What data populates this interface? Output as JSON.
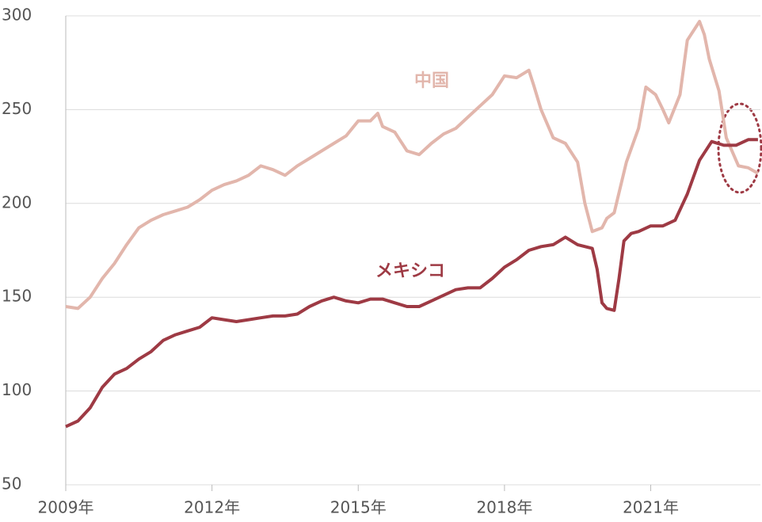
{
  "chart_data": {
    "type": "line",
    "xlim": [
      2009,
      2023.25
    ],
    "xticks": [
      {
        "value": 2009,
        "label": "2009年"
      },
      {
        "value": 2012,
        "label": "2012年"
      },
      {
        "value": 2015,
        "label": "2015年"
      },
      {
        "value": 2018,
        "label": "2018年"
      },
      {
        "value": 2021,
        "label": "2021年"
      }
    ],
    "ylim": [
      50,
      300
    ],
    "yticks": [
      50,
      100,
      150,
      200,
      250,
      300
    ],
    "grid": true,
    "series": [
      {
        "name": "中国",
        "color": "#e2b6ac",
        "x": [
          2009.0,
          2009.25,
          2009.5,
          2009.75,
          2010.0,
          2010.25,
          2010.5,
          2010.75,
          2011.0,
          2011.25,
          2011.5,
          2011.75,
          2012.0,
          2012.25,
          2012.5,
          2012.75,
          2013.0,
          2013.25,
          2013.5,
          2013.75,
          2014.0,
          2014.25,
          2014.5,
          2014.75,
          2015.0,
          2015.25,
          2015.4,
          2015.5,
          2015.75,
          2016.0,
          2016.25,
          2016.5,
          2016.75,
          2017.0,
          2017.25,
          2017.5,
          2017.75,
          2018.0,
          2018.25,
          2018.5,
          2018.6,
          2018.75,
          2019.0,
          2019.25,
          2019.5,
          2019.65,
          2019.8,
          2020.0,
          2020.1,
          2020.25,
          2020.5,
          2020.75,
          2020.9,
          2021.1,
          2021.25,
          2021.37,
          2021.6,
          2021.75,
          2022.0,
          2022.1,
          2022.2,
          2022.4,
          2022.55,
          2022.8,
          2023.0,
          2023.2
        ],
        "values": [
          145,
          144,
          150,
          160,
          168,
          178,
          187,
          191,
          194,
          196,
          198,
          202,
          207,
          210,
          212,
          215,
          220,
          218,
          215,
          220,
          224,
          228,
          232,
          236,
          244,
          244,
          248,
          241,
          238,
          228,
          226,
          232,
          237,
          240,
          246,
          252,
          258,
          268,
          267,
          271,
          263,
          250,
          235,
          232,
          222,
          200,
          185,
          187,
          192,
          195,
          222,
          240,
          262,
          258,
          250,
          243,
          258,
          287,
          297,
          290,
          277,
          260,
          235,
          220,
          219,
          216
        ]
      },
      {
        "name": "メキシコ",
        "color": "#9e3a44",
        "x": [
          2009.0,
          2009.25,
          2009.5,
          2009.75,
          2010.0,
          2010.25,
          2010.5,
          2010.75,
          2011.0,
          2011.25,
          2011.5,
          2011.75,
          2012.0,
          2012.25,
          2012.5,
          2012.75,
          2013.0,
          2013.25,
          2013.5,
          2013.75,
          2014.0,
          2014.25,
          2014.5,
          2014.75,
          2015.0,
          2015.25,
          2015.5,
          2015.75,
          2016.0,
          2016.25,
          2016.5,
          2016.75,
          2017.0,
          2017.25,
          2017.5,
          2017.75,
          2018.0,
          2018.25,
          2018.5,
          2018.75,
          2019.0,
          2019.25,
          2019.5,
          2019.8,
          2019.9,
          2020.0,
          2020.1,
          2020.25,
          2020.35,
          2020.45,
          2020.6,
          2020.75,
          2021.0,
          2021.25,
          2021.5,
          2021.75,
          2022.0,
          2022.25,
          2022.5,
          2022.75,
          2023.0,
          2023.2
        ],
        "values": [
          81,
          84,
          91,
          102,
          109,
          112,
          117,
          121,
          127,
          130,
          132,
          134,
          139,
          138,
          137,
          138,
          139,
          140,
          140,
          141,
          145,
          148,
          150,
          148,
          147,
          149,
          149,
          147,
          145,
          145,
          148,
          151,
          154,
          155,
          155,
          160,
          166,
          170,
          175,
          177,
          178,
          182,
          178,
          176,
          165,
          147,
          144,
          143,
          160,
          180,
          184,
          185,
          188,
          188,
          191,
          205,
          223,
          233,
          231,
          231,
          234,
          234
        ]
      }
    ]
  }
}
